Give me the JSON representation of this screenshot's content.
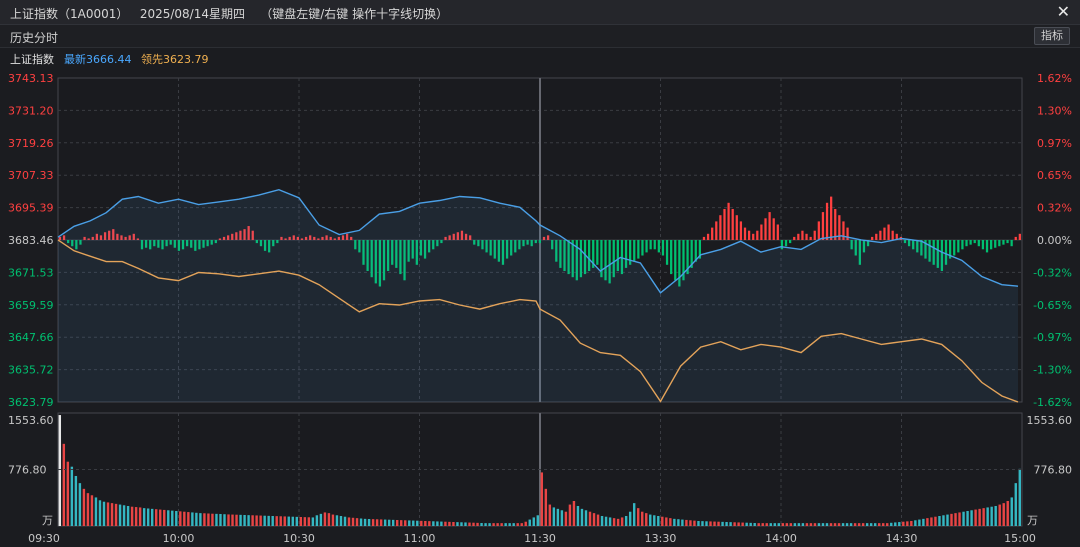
{
  "window": {
    "title": "上证指数（1A0001）   2025/08/14星期四    （键盘左键/右键 操作十字线切换）",
    "close_icon": "close-icon"
  },
  "toolbar": {
    "history_label": "历史分时",
    "indicator_button": "指标"
  },
  "legend": {
    "index_name": "上证指数",
    "latest_label": "最新3666.44",
    "lead_label": "领先3623.79",
    "latest_color": "#4aa8ff",
    "lead_color": "#f0b050"
  },
  "colors": {
    "up": "#ff4040",
    "down": "#00c070",
    "price_line": "#4a9fe6",
    "lead_line": "#e3a35a",
    "grid": "#3a3c42",
    "neutral": "#c8c8c8"
  },
  "chart_data": [
    {
      "type": "line",
      "title": "",
      "x_ticks": [
        "09:30",
        "10:00",
        "10:30",
        "11:00",
        "11:30",
        "13:30",
        "14:00",
        "14:30",
        "15:00"
      ],
      "y_ticks_left": [
        "3743.13",
        "3731.20",
        "3719.26",
        "3707.33",
        "3695.39",
        "3683.46",
        "3671.53",
        "3659.59",
        "3647.66",
        "3635.72",
        "3623.79"
      ],
      "y_ticks_right": [
        "1.62%",
        "1.30%",
        "0.97%",
        "0.65%",
        "0.32%",
        "0.00%",
        "-0.32%",
        "-0.65%",
        "-0.97%",
        "-1.30%",
        "-1.62%"
      ],
      "ylim": [
        3623.79,
        3743.13
      ],
      "base_value": 3683.46,
      "series": [
        {
          "name": "最新",
          "x": [
            0,
            4,
            8,
            12,
            16,
            20,
            25,
            30,
            35,
            40,
            45,
            50,
            55,
            60,
            65,
            70,
            75,
            80,
            85,
            90,
            95,
            100,
            105,
            110,
            115,
            119,
            120,
            125,
            130,
            135,
            140,
            145,
            150,
            155,
            160,
            165,
            170,
            175,
            180,
            185,
            190,
            195,
            200,
            205,
            210,
            215,
            220,
            225,
            230,
            235,
            239
          ],
          "values": [
            3684.5,
            3688.5,
            3690.5,
            3693.5,
            3698.5,
            3699.5,
            3697,
            3698.5,
            3696.5,
            3697.5,
            3698.5,
            3700,
            3702,
            3699,
            3689,
            3685.5,
            3687,
            3693,
            3694,
            3697,
            3698,
            3699.5,
            3699,
            3697,
            3695.5,
            3690.5,
            3689,
            3685,
            3680,
            3672,
            3677,
            3675,
            3664,
            3670,
            3678,
            3680,
            3683,
            3679,
            3681,
            3680,
            3684,
            3685,
            3683.5,
            3682.5,
            3684,
            3683,
            3679,
            3676,
            3670,
            3667,
            3666.44
          ]
        },
        {
          "name": "领先",
          "x": [
            0,
            4,
            8,
            12,
            16,
            20,
            25,
            30,
            35,
            40,
            45,
            50,
            55,
            60,
            65,
            70,
            75,
            80,
            85,
            90,
            95,
            100,
            105,
            110,
            115,
            119,
            120,
            125,
            130,
            135,
            140,
            145,
            150,
            155,
            160,
            165,
            170,
            175,
            180,
            185,
            190,
            195,
            200,
            205,
            210,
            215,
            220,
            225,
            230,
            235,
            239
          ],
          "values": [
            3683.5,
            3679.5,
            3677.5,
            3675.5,
            3675.5,
            3673,
            3669.5,
            3668.5,
            3671.5,
            3671,
            3670,
            3671,
            3672,
            3670.5,
            3667,
            3662,
            3657,
            3660,
            3659.5,
            3661,
            3661.5,
            3659.5,
            3658,
            3660,
            3661.5,
            3661,
            3658,
            3654,
            3645.5,
            3642,
            3641,
            3635,
            3624,
            3637,
            3644,
            3646,
            3643,
            3645,
            3644,
            3642,
            3648,
            3649,
            3647,
            3645,
            3646,
            3647,
            3645,
            3639,
            3631,
            3626,
            3623.79
          ]
        }
      ],
      "bar_series": {
        "name": "涨跌",
        "values": [
          1,
          1.5,
          -1,
          -2,
          -3,
          -1.5,
          1,
          0.5,
          1,
          2,
          1.5,
          2.5,
          3,
          3.5,
          2,
          1.5,
          1,
          1.5,
          2,
          0.5,
          -3,
          -2.5,
          -3,
          -2,
          -2.5,
          -3,
          -2,
          -1.5,
          -2.5,
          -3.5,
          -3,
          -2,
          -2.5,
          -3.5,
          -3,
          -2.5,
          -2,
          -1.5,
          -1,
          0.5,
          1,
          1.5,
          2,
          2.5,
          3,
          3.5,
          4.5,
          3,
          -1,
          -2,
          -3.5,
          -4,
          -2,
          -1,
          1,
          0.5,
          1,
          1.5,
          1,
          0.5,
          1,
          1.5,
          1,
          0.5,
          1,
          1.5,
          1,
          0.5,
          1,
          1.5,
          2,
          1,
          -3,
          -4,
          -8,
          -10,
          -12,
          -14,
          -15,
          -13,
          -10,
          -8,
          -9,
          -11,
          -13,
          -7,
          -6,
          -8,
          -5,
          -6,
          -4,
          -3,
          -2,
          -1,
          1,
          1.5,
          2,
          2.5,
          3,
          2,
          1.5,
          -1.5,
          -2,
          -3,
          -4,
          -5,
          -6,
          -7,
          -8,
          -6,
          -5,
          -4,
          -3,
          -2,
          -1.5,
          -2,
          -1,
          -1,
          1,
          1.5,
          -3,
          -7,
          -9,
          -10,
          -11,
          -12,
          -13,
          -12,
          -11,
          -10,
          -9,
          -8,
          -12,
          -13,
          -14,
          -12,
          -10,
          -11,
          -9,
          -8,
          -7,
          -6,
          -5,
          -4,
          -3,
          -3,
          -4,
          -5,
          -8,
          -11,
          -13,
          -15,
          -13,
          -11,
          -9,
          -7,
          -6,
          1,
          2,
          4,
          6,
          8,
          10,
          12,
          10,
          8,
          6,
          4,
          3,
          2,
          3,
          5,
          7,
          9,
          7,
          5,
          -3,
          -2,
          -1,
          1,
          2,
          3,
          2,
          1,
          3,
          6,
          9,
          12,
          14,
          10,
          8,
          6,
          4,
          -3,
          -5,
          -8,
          -4,
          -2,
          1,
          2,
          3,
          4,
          5,
          3,
          2,
          1,
          -1,
          -2,
          -3,
          -4,
          -5,
          -6,
          -7,
          -8,
          -9,
          -10,
          -8,
          -6,
          -5,
          -4,
          -3,
          -2,
          -1.5,
          -1,
          -2,
          -3,
          -4,
          -3,
          -2.5,
          -2,
          -1.5,
          -1,
          -2,
          1,
          2
        ]
      }
    },
    {
      "type": "bar",
      "title": "",
      "y_ticks": [
        "1553.60",
        "776.80"
      ],
      "unit_label": "万",
      "ylim": [
        0,
        1553.6
      ],
      "values": [
        1553,
        1150,
        900,
        830,
        700,
        600,
        520,
        460,
        430,
        400,
        360,
        340,
        330,
        320,
        310,
        300,
        290,
        280,
        270,
        265,
        260,
        250,
        245,
        240,
        235,
        230,
        225,
        220,
        215,
        210,
        205,
        200,
        195,
        190,
        185,
        180,
        178,
        175,
        172,
        170,
        168,
        165,
        162,
        160,
        158,
        156,
        154,
        152,
        150,
        148,
        146,
        144,
        142,
        140,
        138,
        136,
        134,
        132,
        130,
        128,
        126,
        124,
        122,
        120,
        150,
        170,
        190,
        180,
        160,
        150,
        140,
        130,
        120,
        115,
        110,
        105,
        100,
        98,
        96,
        94,
        92,
        90,
        88,
        86,
        84,
        82,
        80,
        78,
        76,
        74,
        72,
        70,
        68,
        66,
        64,
        62,
        60,
        58,
        56,
        54,
        52,
        50,
        48,
        46,
        44,
        42,
        40,
        40,
        40,
        40,
        40,
        40,
        40,
        40,
        40,
        40,
        60,
        90,
        120,
        150,
        750,
        520,
        300,
        260,
        240,
        220,
        200,
        300,
        350,
        280,
        240,
        220,
        200,
        180,
        160,
        140,
        130,
        120,
        110,
        100,
        120,
        140,
        200,
        320,
        250,
        200,
        180,
        160,
        150,
        140,
        130,
        120,
        110,
        100,
        95,
        90,
        85,
        80,
        75,
        70,
        68,
        66,
        64,
        62,
        60,
        58,
        56,
        54,
        52,
        50,
        48,
        46,
        44,
        42,
        40,
        40,
        40,
        40,
        40,
        40,
        40,
        40,
        40,
        40,
        40,
        40,
        40,
        40,
        40,
        40,
        40,
        40,
        40,
        40,
        40,
        40,
        40,
        40,
        40,
        40,
        40,
        40,
        40,
        40,
        40,
        40,
        40,
        45,
        50,
        55,
        60,
        65,
        70,
        80,
        90,
        100,
        110,
        120,
        130,
        140,
        150,
        160,
        170,
        180,
        190,
        200,
        210,
        220,
        230,
        240,
        250,
        260,
        270,
        280,
        300,
        320,
        350,
        400,
        600,
        800
      ]
    }
  ]
}
